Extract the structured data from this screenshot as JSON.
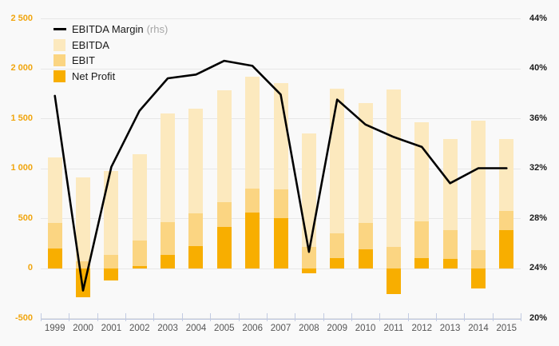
{
  "chart_data": {
    "type": "bar",
    "subtype": "overlapping-bars-with-line",
    "title": "",
    "categories": [
      "1999",
      "2000",
      "2001",
      "2002",
      "2003",
      "2004",
      "2005",
      "2006",
      "2007",
      "2008",
      "2009",
      "2010",
      "2011",
      "2012",
      "2013",
      "2014",
      "2015"
    ],
    "series": [
      {
        "name": "EBITDA Margin",
        "suffix": "(rhs)",
        "type": "line",
        "axis": "right",
        "color": "#000000",
        "values": [
          37.8,
          22.2,
          32.1,
          36.6,
          39.2,
          39.5,
          40.6,
          40.2,
          37.9,
          25.3,
          37.5,
          35.5,
          34.5,
          33.7,
          30.8,
          32.0,
          32.0
        ]
      },
      {
        "name": "EBITDA",
        "type": "bar",
        "axis": "left",
        "color": "#FCE9BE",
        "values": [
          1110,
          910,
          970,
          1140,
          1550,
          1600,
          1780,
          1920,
          1850,
          1350,
          1800,
          1650,
          1790,
          1460,
          1290,
          1480,
          1290
        ]
      },
      {
        "name": "EBIT",
        "type": "bar",
        "axis": "left",
        "color": "#FBD582",
        "values": [
          450,
          70,
          130,
          280,
          460,
          550,
          660,
          800,
          790,
          210,
          350,
          450,
          210,
          470,
          380,
          180,
          570
        ]
      },
      {
        "name": "Net Profit",
        "type": "bar",
        "axis": "left",
        "color": "#F8AE00",
        "values": [
          200,
          -290,
          -120,
          20,
          130,
          220,
          410,
          560,
          500,
          -50,
          100,
          190,
          -260,
          100,
          90,
          -200,
          380
        ]
      }
    ],
    "left_axis": {
      "min": -500,
      "max": 2500,
      "step": 500,
      "tick_labels": [
        "2 500",
        "2 000",
        "1 500",
        "1 000",
        "500",
        "0",
        "-500"
      ],
      "label_color": "#F1A50D"
    },
    "right_axis": {
      "min": 20,
      "max": 44,
      "step": 4,
      "tick_labels": [
        "44%",
        "40%",
        "36%",
        "32%",
        "28%",
        "24%",
        "20%"
      ],
      "label_color": "#1a1a1a"
    },
    "grid": true,
    "legend_position": "top-left",
    "background": "#f9f9f9",
    "gridline_color": "#e7e7e7",
    "xaxis_color": "#b9c3dc"
  },
  "legend": {
    "items": [
      {
        "label": "EBITDA Margin",
        "suffix": "(rhs)",
        "swatch": "line",
        "color": "#000000"
      },
      {
        "label": "EBITDA",
        "suffix": "",
        "swatch": "square",
        "color": "#FCE9BE"
      },
      {
        "label": "EBIT",
        "suffix": "",
        "swatch": "square",
        "color": "#FBD582"
      },
      {
        "label": "Net Profit",
        "suffix": "",
        "swatch": "square",
        "color": "#F8AE00"
      }
    ]
  }
}
